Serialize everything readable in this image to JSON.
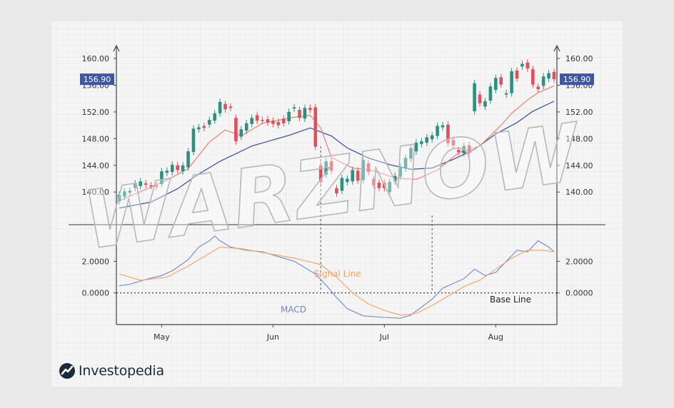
{
  "brand": {
    "name": "Investopedia",
    "watermark": "WARZNOW"
  },
  "colors": {
    "up": "#2f8f80",
    "down": "#e0505a",
    "ema_fast": "#ef7f73",
    "ema_slow": "#3f56a6",
    "macd": "#6f86d6",
    "signal": "#f3a35c",
    "tag_bg": "#3f56a6",
    "axis": "#444444"
  },
  "chart_data": [
    {
      "type": "candlestick",
      "panel": "price",
      "price_tag": "156.90",
      "ylim": [
        136.5,
        161.5
      ],
      "y_ticks": [
        "140.00",
        "144.00",
        "148.00",
        "152.00",
        "156.00",
        "160.00"
      ],
      "y_tick_values": [
        140,
        144,
        148,
        152,
        156,
        160
      ],
      "x_ticks": [
        "May",
        "Jun",
        "Jul",
        "Aug"
      ],
      "x_tick_index": [
        8,
        29,
        50,
        71
      ],
      "candles": [
        {
          "o": 138.6,
          "c": 139.6
        },
        {
          "o": 139.3,
          "c": 140.1
        },
        {
          "o": 139.9,
          "c": 140.2
        },
        {
          "o": 140.6,
          "c": 141.3
        },
        {
          "o": 140.9,
          "c": 141.6
        },
        {
          "o": 141.3,
          "c": 141.1
        },
        {
          "o": 141.0,
          "c": 140.9
        },
        {
          "o": 141.0,
          "c": 140.8
        },
        {
          "o": 141.2,
          "c": 143.1
        },
        {
          "o": 142.9,
          "c": 143.2
        },
        {
          "o": 143.0,
          "c": 144.1
        },
        {
          "o": 144.0,
          "c": 143.3
        },
        {
          "o": 143.1,
          "c": 144.0
        },
        {
          "o": 143.7,
          "c": 146.1
        },
        {
          "o": 146.0,
          "c": 149.5
        },
        {
          "o": 149.4,
          "c": 149.7
        },
        {
          "o": 149.9,
          "c": 149.6
        },
        {
          "o": 150.1,
          "c": 150.8
        },
        {
          "o": 150.7,
          "c": 151.8
        },
        {
          "o": 151.8,
          "c": 153.5
        },
        {
          "o": 153.2,
          "c": 152.4
        },
        {
          "o": 152.8,
          "c": 152.6
        },
        {
          "o": 151.1,
          "c": 147.6
        },
        {
          "o": 148.3,
          "c": 149.4
        },
        {
          "o": 149.2,
          "c": 150.3
        },
        {
          "o": 150.2,
          "c": 151.1
        },
        {
          "o": 151.5,
          "c": 150.7
        },
        {
          "o": 150.8,
          "c": 150.7
        },
        {
          "o": 150.9,
          "c": 150.4
        },
        {
          "o": 150.7,
          "c": 150.2
        },
        {
          "o": 150.5,
          "c": 150.0
        },
        {
          "o": 151.0,
          "c": 150.3
        },
        {
          "o": 150.6,
          "c": 152.0
        },
        {
          "o": 152.5,
          "c": 152.7
        },
        {
          "o": 152.3,
          "c": 151.1
        },
        {
          "o": 151.0,
          "c": 152.6
        },
        {
          "o": 152.6,
          "c": 152.3
        },
        {
          "o": 152.7,
          "c": 146.8
        },
        {
          "o": 144.0,
          "c": 141.5
        },
        {
          "o": 142.6,
          "c": 144.6
        },
        {
          "o": 144.6,
          "c": 143.2
        },
        {
          "o": 140.6,
          "c": 139.8
        },
        {
          "o": 140.2,
          "c": 142.1
        },
        {
          "o": 141.5,
          "c": 142.0
        },
        {
          "o": 141.6,
          "c": 143.3
        },
        {
          "o": 143.2,
          "c": 141.7
        },
        {
          "o": 141.8,
          "c": 144.8
        },
        {
          "o": 144.3,
          "c": 143.0
        },
        {
          "o": 142.0,
          "c": 141.0
        },
        {
          "o": 141.4,
          "c": 140.6
        },
        {
          "o": 141.4,
          "c": 140.6
        },
        {
          "o": 140.0,
          "c": 141.5
        },
        {
          "o": 141.6,
          "c": 142.4
        },
        {
          "o": 142.3,
          "c": 143.8
        },
        {
          "o": 143.5,
          "c": 145.1
        },
        {
          "o": 145.0,
          "c": 146.6
        },
        {
          "o": 146.1,
          "c": 147.4
        },
        {
          "o": 147.2,
          "c": 147.6
        },
        {
          "o": 147.4,
          "c": 148.2
        },
        {
          "o": 147.9,
          "c": 148.5
        },
        {
          "o": 148.4,
          "c": 149.9
        },
        {
          "o": 149.7,
          "c": 150.0
        },
        {
          "o": 150.1,
          "c": 147.3
        },
        {
          "o": 147.8,
          "c": 147.0
        },
        {
          "o": 146.3,
          "c": 146.0
        },
        {
          "o": 145.8,
          "c": 146.9
        },
        {
          "o": 147.0,
          "c": 145.8
        },
        {
          "o": 152.1,
          "c": 156.3
        },
        {
          "o": 154.6,
          "c": 153.3
        },
        {
          "o": 152.8,
          "c": 153.6
        },
        {
          "o": 153.7,
          "c": 155.8
        },
        {
          "o": 155.3,
          "c": 157.1
        },
        {
          "o": 157.2,
          "c": 156.1
        },
        {
          "o": 154.6,
          "c": 154.8
        },
        {
          "o": 154.8,
          "c": 158.1
        },
        {
          "o": 158.2,
          "c": 157.0
        },
        {
          "o": 158.8,
          "c": 159.2
        },
        {
          "o": 159.4,
          "c": 158.5
        },
        {
          "o": 158.4,
          "c": 156.1
        },
        {
          "o": 155.8,
          "c": 155.4
        },
        {
          "o": 155.9,
          "c": 157.3
        },
        {
          "o": 157.0,
          "c": 157.8
        },
        {
          "o": 158.0,
          "c": 156.9
        }
      ],
      "ema_fast": [
        [
          0,
          138.7
        ],
        [
          5,
          140.4
        ],
        [
          9,
          141.8
        ],
        [
          13,
          143.5
        ],
        [
          17,
          147.5
        ],
        [
          20,
          149.3
        ],
        [
          23,
          148.4
        ],
        [
          27,
          150.3
        ],
        [
          33,
          151.2
        ],
        [
          36,
          151.5
        ],
        [
          38,
          149.6
        ],
        [
          40,
          145.2
        ],
        [
          44,
          143.6
        ],
        [
          48,
          143.2
        ],
        [
          52,
          142.1
        ],
        [
          56,
          141.9
        ],
        [
          60,
          143.3
        ],
        [
          64,
          145.9
        ],
        [
          68,
          146.9
        ],
        [
          72,
          150.0
        ],
        [
          74,
          151.8
        ],
        [
          77,
          153.8
        ],
        [
          79,
          154.9
        ],
        [
          82,
          155.9
        ]
      ],
      "ema_slow": [
        [
          0,
          137.6
        ],
        [
          6,
          138.5
        ],
        [
          11,
          140.5
        ],
        [
          15,
          142.7
        ],
        [
          19,
          144.6
        ],
        [
          25,
          146.9
        ],
        [
          32,
          148.5
        ],
        [
          36,
          149.6
        ],
        [
          40,
          148.4
        ],
        [
          43,
          146.6
        ],
        [
          47,
          145.1
        ],
        [
          51,
          144.1
        ],
        [
          55,
          143.4
        ],
        [
          59,
          143.6
        ],
        [
          63,
          144.9
        ],
        [
          67,
          146.4
        ],
        [
          71,
          148.7
        ],
        [
          75,
          150.4
        ],
        [
          78,
          152.1
        ],
        [
          82,
          153.6
        ]
      ]
    },
    {
      "type": "line",
      "panel": "macd",
      "ylim": [
        -2.0,
        4.0
      ],
      "y_ticks": [
        "0.0000",
        "2.0000"
      ],
      "y_tick_values": [
        0,
        2
      ],
      "series": [
        {
          "name": "MACD",
          "points": [
            [
              0,
              0.45
            ],
            [
              2,
              0.55
            ],
            [
              5,
              0.85
            ],
            [
              8,
              1.1
            ],
            [
              10,
              1.4
            ],
            [
              13,
              2.1
            ],
            [
              15,
              2.9
            ],
            [
              17,
              3.3
            ],
            [
              18,
              3.6
            ],
            [
              19,
              3.3
            ],
            [
              21,
              2.9
            ],
            [
              24,
              2.7
            ],
            [
              27,
              2.6
            ],
            [
              30,
              2.3
            ],
            [
              33,
              2.0
            ],
            [
              35,
              1.6
            ],
            [
              37,
              1.2
            ],
            [
              39,
              0.5
            ],
            [
              41,
              -0.3
            ],
            [
              43,
              -1.0
            ],
            [
              46,
              -1.45
            ],
            [
              50,
              -1.55
            ],
            [
              53,
              -1.6
            ],
            [
              55,
              -1.4
            ],
            [
              57,
              -0.9
            ],
            [
              59,
              -0.4
            ],
            [
              61,
              0.3
            ],
            [
              63,
              0.6
            ],
            [
              65,
              0.9
            ],
            [
              67,
              1.5
            ],
            [
              69,
              1.1
            ],
            [
              71,
              1.3
            ],
            [
              73,
              2.0
            ],
            [
              75,
              2.7
            ],
            [
              77,
              2.6
            ],
            [
              79,
              3.3
            ],
            [
              81,
              2.9
            ],
            [
              82,
              2.6
            ]
          ]
        },
        {
          "name": "Signal Line",
          "points": [
            [
              0,
              1.2
            ],
            [
              4,
              0.8
            ],
            [
              9,
              1.0
            ],
            [
              13,
              1.7
            ],
            [
              16,
              2.3
            ],
            [
              19,
              2.9
            ],
            [
              23,
              2.8
            ],
            [
              28,
              2.5
            ],
            [
              33,
              2.2
            ],
            [
              38,
              1.8
            ],
            [
              41,
              1.0
            ],
            [
              44,
              0.0
            ],
            [
              47,
              -0.7
            ],
            [
              50,
              -1.1
            ],
            [
              53,
              -1.4
            ],
            [
              56,
              -1.3
            ],
            [
              59,
              -0.8
            ],
            [
              62,
              -0.2
            ],
            [
              65,
              0.4
            ],
            [
              68,
              0.8
            ],
            [
              71,
              1.5
            ],
            [
              74,
              2.2
            ],
            [
              77,
              2.7
            ],
            [
              80,
              2.7
            ],
            [
              82,
              2.6
            ]
          ]
        }
      ],
      "annotations": [
        {
          "text": "Signal Line",
          "color": "#f3a35c"
        },
        {
          "text": "MACD",
          "color": "#6f86d6"
        },
        {
          "text": "Base Line",
          "color": "#222222"
        }
      ]
    }
  ]
}
